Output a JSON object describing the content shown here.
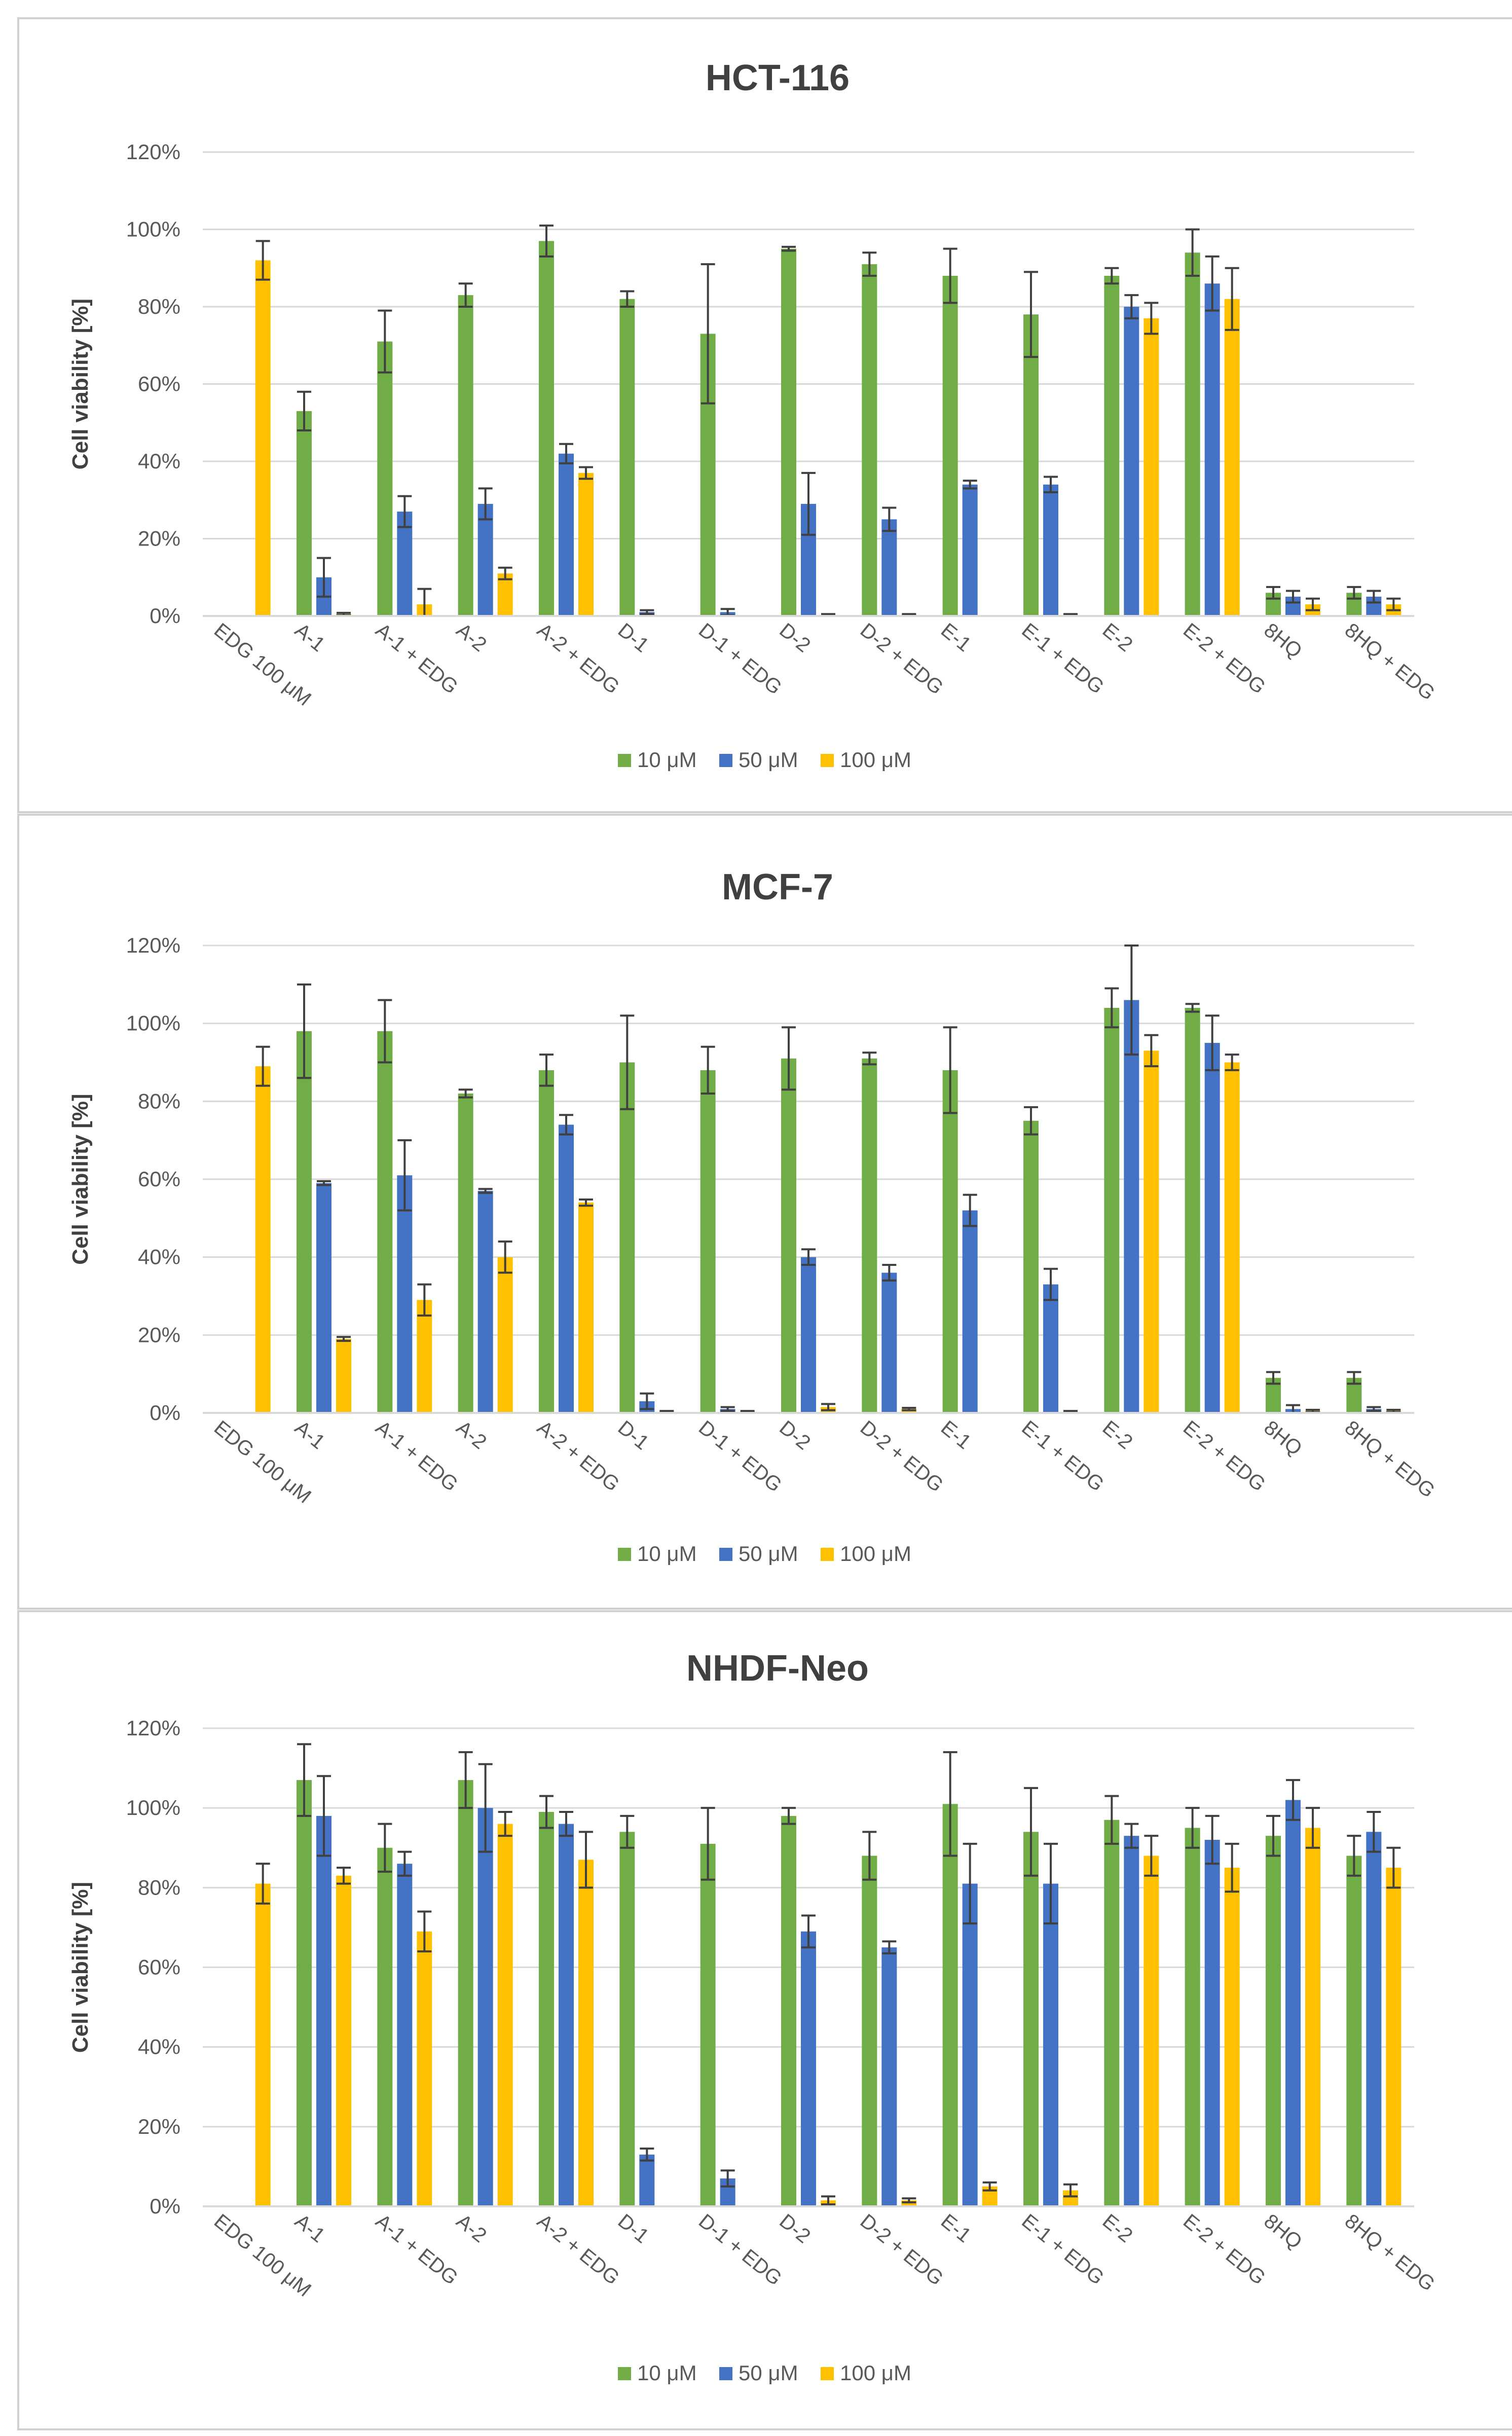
{
  "chart_data": [
    {
      "type": "bar",
      "title": "HCT-116",
      "ylabel": "Cell viability [%]",
      "xlabel": "",
      "ylim": [
        0,
        120
      ],
      "yticks": [
        "0%",
        "20%",
        "40%",
        "60%",
        "80%",
        "100%",
        "120%"
      ],
      "grid": true,
      "legend_position": "bottom",
      "categories": [
        "EDG 100 μM",
        "A-1",
        "A-1 + EDG",
        "A-2",
        "A-2 + EDG",
        "D-1",
        "D-1 + EDG",
        "D-2",
        "D-2 + EDG",
        "E-1",
        "E-1 + EDG",
        "E-2",
        "E-2 + EDG",
        "8HQ",
        "8HQ + EDG"
      ],
      "series": [
        {
          "name": "10 μM",
          "color": "#70ad47",
          "values": [
            null,
            53,
            71,
            83,
            97,
            82,
            73,
            95,
            91,
            88,
            78,
            88,
            94,
            6,
            6
          ],
          "errors": [
            null,
            5,
            8,
            3,
            4,
            2,
            18,
            0.5,
            3,
            7,
            11,
            2,
            6,
            1.5,
            1.5
          ]
        },
        {
          "name": "50 μM",
          "color": "#4472c4",
          "values": [
            null,
            10,
            27,
            29,
            42,
            1,
            1,
            29,
            25,
            34,
            34,
            80,
            86,
            5,
            5
          ],
          "errors": [
            null,
            5,
            4,
            4,
            2.5,
            0.5,
            0.8,
            8,
            3,
            1,
            2,
            3,
            7,
            1.5,
            1.5
          ]
        },
        {
          "name": "100 μM",
          "color": "#ffc000",
          "values": [
            92,
            0.5,
            3,
            11,
            37,
            0,
            0,
            0.3,
            0.3,
            0,
            0.3,
            77,
            82,
            3,
            3
          ],
          "errors": [
            5,
            0.3,
            4,
            1.5,
            1.5,
            0,
            0,
            0.2,
            0.2,
            0,
            0.2,
            4,
            8,
            1.5,
            1.5
          ]
        }
      ]
    },
    {
      "type": "bar",
      "title": "MCF-7",
      "ylabel": "Cell viability [%]",
      "xlabel": "",
      "ylim": [
        0,
        120
      ],
      "yticks": [
        "0%",
        "20%",
        "40%",
        "60%",
        "80%",
        "100%",
        "120%"
      ],
      "grid": true,
      "legend_position": "bottom",
      "categories": [
        "EDG 100 μM",
        "A-1",
        "A-1 + EDG",
        "A-2",
        "A-2 + EDG",
        "D-1",
        "D-1 + EDG",
        "D-2",
        "D-2 + EDG",
        "E-1",
        "E-1 + EDG",
        "E-2",
        "E-2 + EDG",
        "8HQ",
        "8HQ + EDG"
      ],
      "series": [
        {
          "name": "10 μM",
          "color": "#70ad47",
          "values": [
            null,
            98,
            98,
            82,
            88,
            90,
            88,
            91,
            91,
            88,
            75,
            104,
            104,
            9,
            9
          ],
          "errors": [
            null,
            12,
            8,
            1,
            4,
            12,
            6,
            8,
            1.5,
            11,
            3.5,
            5,
            1,
            1.5,
            1.5
          ]
        },
        {
          "name": "50 μM",
          "color": "#4472c4",
          "values": [
            null,
            59,
            61,
            57,
            74,
            3,
            1,
            40,
            36,
            52,
            33,
            106,
            95,
            1,
            1
          ],
          "errors": [
            null,
            0.5,
            9,
            0.5,
            2.5,
            2,
            0.5,
            2,
            2,
            4,
            4,
            14,
            7,
            1,
            0.5
          ]
        },
        {
          "name": "100 μM",
          "color": "#ffc000",
          "values": [
            89,
            19,
            29,
            40,
            54,
            0.3,
            0.3,
            1.5,
            1,
            0,
            0.3,
            93,
            90,
            0.5,
            0.5
          ],
          "errors": [
            5,
            0.5,
            4,
            4,
            0.8,
            0.2,
            0.2,
            0.8,
            0.3,
            0,
            0.2,
            4,
            2,
            0.3,
            0.3
          ]
        }
      ]
    },
    {
      "type": "bar",
      "title": "NHDF-Neo",
      "ylabel": "Cell viability [%]",
      "xlabel": "",
      "ylim": [
        0,
        120
      ],
      "yticks": [
        "0%",
        "20%",
        "40%",
        "60%",
        "80%",
        "100%",
        "120%"
      ],
      "grid": true,
      "legend_position": "bottom",
      "categories": [
        "EDG 100 μM",
        "A-1",
        "A-1 + EDG",
        "A-2",
        "A-2 + EDG",
        "D-1",
        "D-1 + EDG",
        "D-2",
        "D-2 + EDG",
        "E-1",
        "E-1 + EDG",
        "E-2",
        "E-2 + EDG",
        "8HQ",
        "8HQ + EDG"
      ],
      "series": [
        {
          "name": "10 μM",
          "color": "#70ad47",
          "values": [
            null,
            107,
            90,
            107,
            99,
            94,
            91,
            98,
            88,
            101,
            94,
            97,
            95,
            93,
            88
          ],
          "errors": [
            null,
            9,
            6,
            7,
            4,
            4,
            9,
            2,
            6,
            13,
            11,
            6,
            5,
            5,
            5
          ]
        },
        {
          "name": "50 μM",
          "color": "#4472c4",
          "values": [
            null,
            98,
            86,
            100,
            96,
            13,
            7,
            69,
            65,
            81,
            81,
            93,
            92,
            102,
            94
          ],
          "errors": [
            null,
            10,
            3,
            11,
            3,
            1.5,
            2,
            4,
            1.5,
            10,
            10,
            3,
            6,
            5,
            5
          ]
        },
        {
          "name": "100 μM",
          "color": "#ffc000",
          "values": [
            81,
            83,
            69,
            96,
            87,
            0,
            0,
            1.5,
            1.5,
            5,
            4,
            88,
            85,
            95,
            85
          ],
          "errors": [
            5,
            2,
            5,
            3,
            7,
            0,
            0,
            1,
            0.5,
            1,
            1.5,
            5,
            6,
            5,
            5
          ]
        }
      ]
    }
  ]
}
